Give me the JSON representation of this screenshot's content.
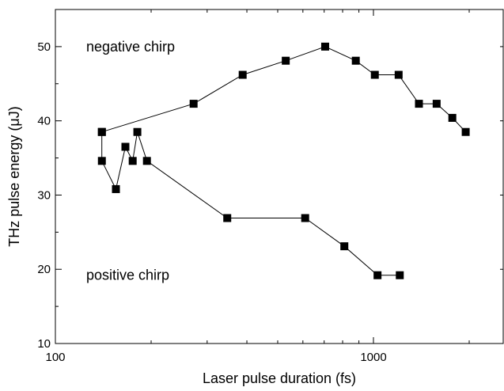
{
  "chart_data": {
    "type": "scatter",
    "xlabel": "Laser pulse duration (fs)",
    "ylabel": "THz pulse energy (μJ)",
    "xscale": "log",
    "xlim": [
      100,
      2500
    ],
    "ylim": [
      10,
      55
    ],
    "x_ticks": [
      100,
      1000
    ],
    "x_tick_labels": [
      "100",
      "1000"
    ],
    "y_ticks": [
      10,
      20,
      30,
      40,
      50
    ],
    "y_tick_labels": [
      "10",
      "20",
      "30",
      "40",
      "50"
    ],
    "grid": false,
    "marker": "square",
    "line_color": "#000000",
    "marker_color": "#000000",
    "series": [
      {
        "x": [
          140,
          272,
          388,
          530,
          705,
          880,
          1010,
          1200,
          1390,
          1580,
          1770,
          1950
        ],
        "y": [
          38.5,
          42.3,
          46.2,
          48.1,
          50.0,
          48.1,
          46.2,
          46.2,
          42.3,
          42.3,
          40.4,
          38.5
        ]
      },
      {
        "x": [
          140,
          140,
          155,
          166,
          175,
          181,
          194,
          347,
          610,
          810,
          1030,
          1210
        ],
        "y": [
          38.5,
          34.6,
          30.8,
          36.5,
          34.6,
          38.5,
          34.6,
          26.9,
          26.9,
          23.1,
          19.2,
          19.2
        ]
      }
    ],
    "annotations": [
      {
        "text": "negative chirp",
        "x": 125,
        "y": 50.0
      },
      {
        "text": "positive chirp",
        "x": 125,
        "y": 19.2
      }
    ]
  }
}
